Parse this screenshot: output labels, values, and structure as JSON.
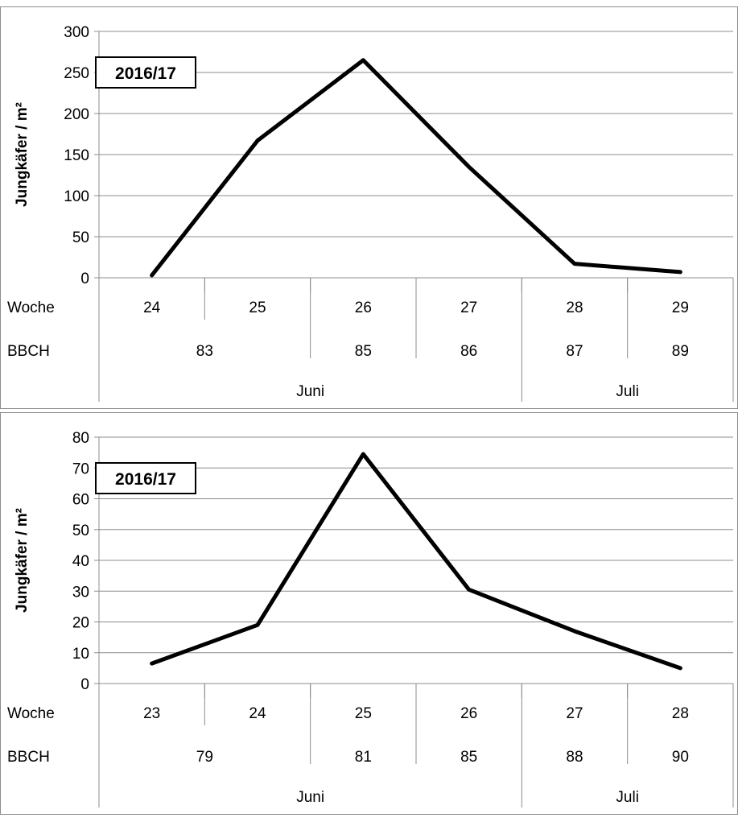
{
  "chart_data": [
    {
      "type": "line",
      "badge": "2016/17",
      "ylabel": "Jungkäfer / m²",
      "ylim": [
        0,
        300
      ],
      "yticks": [
        0,
        50,
        100,
        150,
        200,
        250,
        300
      ],
      "grid": true,
      "row_labels": {
        "woche": "Woche",
        "bbch": "BBCH"
      },
      "categories": [
        "24",
        "25",
        "26",
        "27",
        "28",
        "29"
      ],
      "values": [
        3,
        167,
        265,
        135,
        17,
        7
      ],
      "bbch": [
        {
          "label": "83",
          "start": 0,
          "end": 2
        },
        {
          "label": "85",
          "start": 2,
          "end": 3
        },
        {
          "label": "86",
          "start": 3,
          "end": 4
        },
        {
          "label": "87",
          "start": 4,
          "end": 5
        },
        {
          "label": "89",
          "start": 5,
          "end": 6
        }
      ],
      "months": [
        {
          "label": "Juni",
          "start": 0,
          "end": 4
        },
        {
          "label": "Juli",
          "start": 4,
          "end": 6
        }
      ]
    },
    {
      "type": "line",
      "badge": "2016/17",
      "ylabel": "Jungkäfer / m²",
      "ylim": [
        0,
        80
      ],
      "yticks": [
        0,
        10,
        20,
        30,
        40,
        50,
        60,
        70,
        80
      ],
      "grid": true,
      "row_labels": {
        "woche": "Woche",
        "bbch": "BBCH"
      },
      "categories": [
        "23",
        "24",
        "25",
        "26",
        "27",
        "28"
      ],
      "values": [
        6.5,
        19,
        74.5,
        30.5,
        17,
        5
      ],
      "bbch": [
        {
          "label": "79",
          "start": 0,
          "end": 2
        },
        {
          "label": "81",
          "start": 2,
          "end": 3
        },
        {
          "label": "85",
          "start": 3,
          "end": 4
        },
        {
          "label": "88",
          "start": 4,
          "end": 5
        },
        {
          "label": "90",
          "start": 5,
          "end": 6
        }
      ],
      "months": [
        {
          "label": "Juni",
          "start": 0,
          "end": 4
        },
        {
          "label": "Juli",
          "start": 4,
          "end": 6
        }
      ]
    }
  ]
}
